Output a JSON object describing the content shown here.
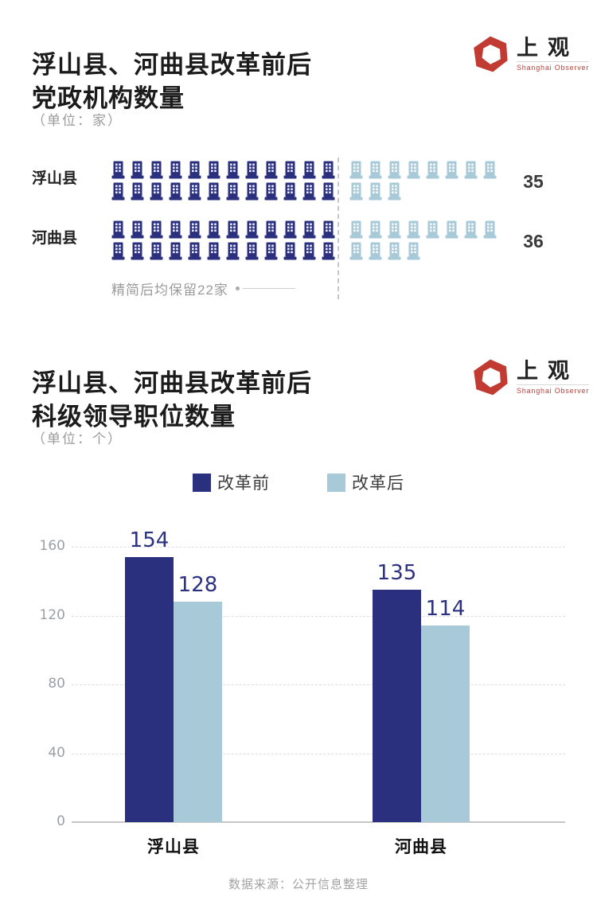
{
  "brand": {
    "name": "上观",
    "subtitle": "Shanghai Observer",
    "logo_red": "#c23b33"
  },
  "section_institutions": {
    "title_line1": "浮山县、河曲县改革前后",
    "title_line2": "党政机构数量",
    "unit": "（单位：家）",
    "annotation": "精简后均保留22家"
  },
  "section_positions": {
    "title_line1": "浮山县、河曲县改革前后",
    "title_line2": "科级领导职位数量",
    "unit": "（单位：个）"
  },
  "footer": {
    "source": "数据来源：公开信息整理"
  },
  "colors": {
    "before_reform": "#2a2f7e",
    "after_reform": "#a8cad8"
  },
  "chart_data": [
    {
      "type": "pictogram",
      "title": "浮山县、河曲县改革前后党政机构数量",
      "unit": "家",
      "icon": "building",
      "categories": [
        "浮山县",
        "河曲县"
      ],
      "totals": [
        35,
        36
      ],
      "kept_after_reform": 22,
      "annotation": "精简后均保留22家",
      "rows": [
        {
          "category": "浮山县",
          "total": 35,
          "lines": [
            {
              "dark": 12,
              "light": 8
            },
            {
              "dark": 12,
              "light": 3
            }
          ]
        },
        {
          "category": "河曲县",
          "total": 36,
          "lines": [
            {
              "dark": 12,
              "light": 8
            },
            {
              "dark": 12,
              "light": 4
            }
          ]
        }
      ],
      "colors": {
        "dark": "#2a2f7e",
        "light": "#a8cad8"
      }
    },
    {
      "type": "bar",
      "title": "浮山县、河曲县改革前后科级领导职位数量",
      "unit": "个",
      "categories": [
        "浮山县",
        "河曲县"
      ],
      "series": [
        {
          "name": "改革前",
          "color": "#2a2f7e",
          "values": [
            154,
            135
          ]
        },
        {
          "name": "改革后",
          "color": "#a8cad8",
          "values": [
            128,
            114
          ]
        }
      ],
      "ylim": [
        0,
        160
      ],
      "yticks": [
        0,
        40,
        80,
        120,
        160
      ],
      "grid": true,
      "legend_position": "top"
    }
  ]
}
